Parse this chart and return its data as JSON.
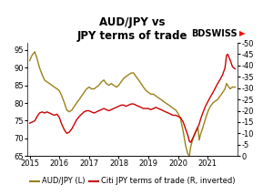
{
  "title": "AUD/JPY vs\nJPY terms of trade",
  "logo_text": "BDSWISS",
  "left_label": "AUD/JPY (L)",
  "right_label": "Citi JPY terms of trade (R, inverted)",
  "audjpy_color": "#9b8118",
  "citi_color": "#cc0000",
  "ylim_left": [
    65,
    97
  ],
  "ylim_right": [
    0,
    -50
  ],
  "yticks_left": [
    65,
    70,
    75,
    80,
    85,
    90,
    95
  ],
  "yticks_right": [
    0,
    -5,
    -10,
    -15,
    -20,
    -25,
    -30,
    -35,
    -40,
    -45,
    -50
  ],
  "ytick_labels_right": [
    "0",
    "-5",
    "-10",
    "-15",
    "-20",
    "-25",
    "-30",
    "-35",
    "-40",
    "-45",
    "-50"
  ],
  "background_color": "#ffffff",
  "title_fontsize": 8.5,
  "legend_fontsize": 6,
  "tick_fontsize": 6,
  "xlim": [
    2014.92,
    2022.0
  ],
  "xticks": [
    2015,
    2016,
    2017,
    2018,
    2019,
    2020,
    2021
  ],
  "audjpy_data": [
    [
      2015.0,
      92.0
    ],
    [
      2015.08,
      93.5
    ],
    [
      2015.17,
      94.5
    ],
    [
      2015.25,
      92.5
    ],
    [
      2015.33,
      90.0
    ],
    [
      2015.42,
      88.0
    ],
    [
      2015.5,
      86.5
    ],
    [
      2015.58,
      86.0
    ],
    [
      2015.67,
      85.5
    ],
    [
      2015.75,
      85.0
    ],
    [
      2015.83,
      84.5
    ],
    [
      2015.92,
      84.0
    ],
    [
      2016.0,
      83.5
    ],
    [
      2016.08,
      82.0
    ],
    [
      2016.17,
      80.0
    ],
    [
      2016.25,
      78.0
    ],
    [
      2016.33,
      77.5
    ],
    [
      2016.42,
      78.0
    ],
    [
      2016.5,
      79.0
    ],
    [
      2016.58,
      80.0
    ],
    [
      2016.67,
      81.0
    ],
    [
      2016.75,
      82.0
    ],
    [
      2016.83,
      83.0
    ],
    [
      2016.92,
      84.0
    ],
    [
      2017.0,
      84.5
    ],
    [
      2017.08,
      84.0
    ],
    [
      2017.17,
      84.0
    ],
    [
      2017.25,
      84.5
    ],
    [
      2017.33,
      85.0
    ],
    [
      2017.42,
      86.0
    ],
    [
      2017.5,
      86.5
    ],
    [
      2017.58,
      85.5
    ],
    [
      2017.67,
      85.0
    ],
    [
      2017.75,
      85.5
    ],
    [
      2017.83,
      85.0
    ],
    [
      2017.92,
      84.5
    ],
    [
      2018.0,
      85.0
    ],
    [
      2018.08,
      86.0
    ],
    [
      2018.17,
      87.0
    ],
    [
      2018.25,
      87.5
    ],
    [
      2018.33,
      88.0
    ],
    [
      2018.42,
      88.5
    ],
    [
      2018.5,
      88.5
    ],
    [
      2018.58,
      87.5
    ],
    [
      2018.67,
      86.5
    ],
    [
      2018.75,
      85.5
    ],
    [
      2018.83,
      84.5
    ],
    [
      2018.92,
      83.5
    ],
    [
      2019.0,
      83.0
    ],
    [
      2019.08,
      82.5
    ],
    [
      2019.17,
      82.5
    ],
    [
      2019.25,
      82.0
    ],
    [
      2019.33,
      81.5
    ],
    [
      2019.42,
      81.0
    ],
    [
      2019.5,
      80.5
    ],
    [
      2019.58,
      80.0
    ],
    [
      2019.67,
      79.5
    ],
    [
      2019.75,
      79.0
    ],
    [
      2019.83,
      78.5
    ],
    [
      2019.92,
      78.0
    ],
    [
      2020.0,
      77.0
    ],
    [
      2020.08,
      75.5
    ],
    [
      2020.17,
      72.0
    ],
    [
      2020.25,
      68.0
    ],
    [
      2020.33,
      65.5
    ],
    [
      2020.38,
      65.0
    ],
    [
      2020.42,
      67.5
    ],
    [
      2020.5,
      70.0
    ],
    [
      2020.58,
      71.5
    ],
    [
      2020.67,
      73.0
    ],
    [
      2020.71,
      69.5
    ],
    [
      2020.75,
      71.0
    ],
    [
      2020.83,
      73.0
    ],
    [
      2020.92,
      75.5
    ],
    [
      2021.0,
      77.5
    ],
    [
      2021.08,
      79.0
    ],
    [
      2021.17,
      80.0
    ],
    [
      2021.25,
      80.5
    ],
    [
      2021.33,
      81.0
    ],
    [
      2021.42,
      82.0
    ],
    [
      2021.5,
      83.0
    ],
    [
      2021.58,
      84.0
    ],
    [
      2021.63,
      85.5
    ],
    [
      2021.67,
      85.0
    ],
    [
      2021.75,
      84.0
    ],
    [
      2021.83,
      84.5
    ],
    [
      2021.92,
      84.5
    ]
  ],
  "citi_data": [
    [
      2015.0,
      -14.5
    ],
    [
      2015.08,
      -15.0
    ],
    [
      2015.17,
      -15.5
    ],
    [
      2015.25,
      -17.5
    ],
    [
      2015.33,
      -19.0
    ],
    [
      2015.42,
      -19.5
    ],
    [
      2015.5,
      -19.0
    ],
    [
      2015.58,
      -19.5
    ],
    [
      2015.67,
      -19.0
    ],
    [
      2015.75,
      -18.5
    ],
    [
      2015.83,
      -18.0
    ],
    [
      2015.92,
      -18.5
    ],
    [
      2016.0,
      -17.0
    ],
    [
      2016.08,
      -14.0
    ],
    [
      2016.17,
      -11.5
    ],
    [
      2016.25,
      -10.0
    ],
    [
      2016.33,
      -10.5
    ],
    [
      2016.42,
      -12.0
    ],
    [
      2016.5,
      -14.0
    ],
    [
      2016.58,
      -16.0
    ],
    [
      2016.67,
      -17.5
    ],
    [
      2016.75,
      -18.5
    ],
    [
      2016.83,
      -19.5
    ],
    [
      2016.92,
      -20.0
    ],
    [
      2017.0,
      -20.0
    ],
    [
      2017.08,
      -19.5
    ],
    [
      2017.17,
      -19.0
    ],
    [
      2017.25,
      -19.5
    ],
    [
      2017.33,
      -20.0
    ],
    [
      2017.42,
      -20.5
    ],
    [
      2017.5,
      -21.0
    ],
    [
      2017.58,
      -20.5
    ],
    [
      2017.67,
      -20.0
    ],
    [
      2017.75,
      -20.5
    ],
    [
      2017.83,
      -21.0
    ],
    [
      2017.92,
      -21.5
    ],
    [
      2018.0,
      -22.0
    ],
    [
      2018.08,
      -22.5
    ],
    [
      2018.17,
      -22.5
    ],
    [
      2018.25,
      -22.0
    ],
    [
      2018.33,
      -22.5
    ],
    [
      2018.42,
      -23.0
    ],
    [
      2018.5,
      -23.0
    ],
    [
      2018.58,
      -22.5
    ],
    [
      2018.67,
      -22.0
    ],
    [
      2018.75,
      -21.5
    ],
    [
      2018.83,
      -21.0
    ],
    [
      2018.92,
      -21.0
    ],
    [
      2019.0,
      -21.0
    ],
    [
      2019.08,
      -20.5
    ],
    [
      2019.17,
      -21.0
    ],
    [
      2019.25,
      -21.5
    ],
    [
      2019.33,
      -21.0
    ],
    [
      2019.42,
      -20.5
    ],
    [
      2019.5,
      -20.0
    ],
    [
      2019.58,
      -19.5
    ],
    [
      2019.67,
      -19.0
    ],
    [
      2019.75,
      -18.5
    ],
    [
      2019.83,
      -18.0
    ],
    [
      2019.92,
      -18.0
    ],
    [
      2020.0,
      -17.5
    ],
    [
      2020.08,
      -17.0
    ],
    [
      2020.17,
      -15.0
    ],
    [
      2020.25,
      -12.0
    ],
    [
      2020.33,
      -9.0
    ],
    [
      2020.38,
      -6.5
    ],
    [
      2020.42,
      -6.0
    ],
    [
      2020.5,
      -8.0
    ],
    [
      2020.58,
      -10.5
    ],
    [
      2020.67,
      -13.0
    ],
    [
      2020.71,
      -14.0
    ],
    [
      2020.75,
      -16.0
    ],
    [
      2020.83,
      -19.0
    ],
    [
      2020.92,
      -22.0
    ],
    [
      2021.0,
      -24.0
    ],
    [
      2021.08,
      -26.0
    ],
    [
      2021.17,
      -28.0
    ],
    [
      2021.25,
      -30.0
    ],
    [
      2021.33,
      -32.0
    ],
    [
      2021.42,
      -34.0
    ],
    [
      2021.5,
      -36.0
    ],
    [
      2021.58,
      -39.0
    ],
    [
      2021.63,
      -44.5
    ],
    [
      2021.67,
      -45.0
    ],
    [
      2021.75,
      -42.5
    ],
    [
      2021.83,
      -39.5
    ],
    [
      2021.92,
      -38.5
    ]
  ]
}
